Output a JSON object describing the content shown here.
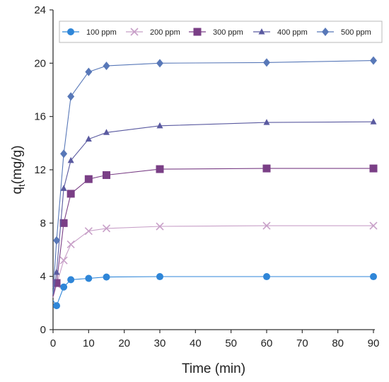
{
  "chart_data": {
    "type": "line",
    "xlabel": "Time (min)",
    "ylabel_main": "q",
    "ylabel_sub": "t",
    "ylabel_unit": "(mg/g)",
    "xlim": [
      0,
      90
    ],
    "ylim": [
      0,
      24
    ],
    "xticks": [
      0,
      10,
      20,
      30,
      40,
      50,
      60,
      70,
      80,
      90
    ],
    "yticks": [
      0,
      4,
      8,
      12,
      16,
      20,
      24
    ],
    "grid": false,
    "legend_position": "top",
    "series": [
      {
        "name": "100 ppm",
        "color": "#2f86d8",
        "marker": "circle",
        "x": [
          0,
          1,
          3,
          5,
          10,
          15,
          30,
          60,
          90
        ],
        "y": [
          2.2,
          1.8,
          3.2,
          3.75,
          3.85,
          3.95,
          3.98,
          3.98,
          3.98
        ]
      },
      {
        "name": "200 ppm",
        "color": "#c8a0c8",
        "marker": "x",
        "x": [
          0,
          1,
          3,
          5,
          10,
          15,
          30,
          60,
          90
        ],
        "y": [
          2.4,
          3.4,
          5.2,
          6.4,
          7.4,
          7.6,
          7.75,
          7.8,
          7.8
        ]
      },
      {
        "name": "300 ppm",
        "color": "#7a3f86",
        "marker": "square",
        "x": [
          0,
          1,
          3,
          5,
          10,
          15,
          30,
          60,
          90
        ],
        "y": [
          2.5,
          3.5,
          8.0,
          10.2,
          11.3,
          11.6,
          12.05,
          12.1,
          12.1
        ]
      },
      {
        "name": "400 ppm",
        "color": "#5a5aa0",
        "marker": "triangle",
        "x": [
          0,
          1,
          3,
          5,
          10,
          15,
          30,
          60,
          90
        ],
        "y": [
          2.6,
          4.3,
          10.6,
          12.7,
          14.3,
          14.8,
          15.3,
          15.55,
          15.6
        ]
      },
      {
        "name": "500 ppm",
        "color": "#5878b8",
        "marker": "diamond",
        "x": [
          0,
          1,
          3,
          5,
          10,
          15,
          30,
          60,
          90
        ],
        "y": [
          2.7,
          6.7,
          13.2,
          17.5,
          19.35,
          19.8,
          20.0,
          20.05,
          20.2
        ]
      }
    ]
  }
}
